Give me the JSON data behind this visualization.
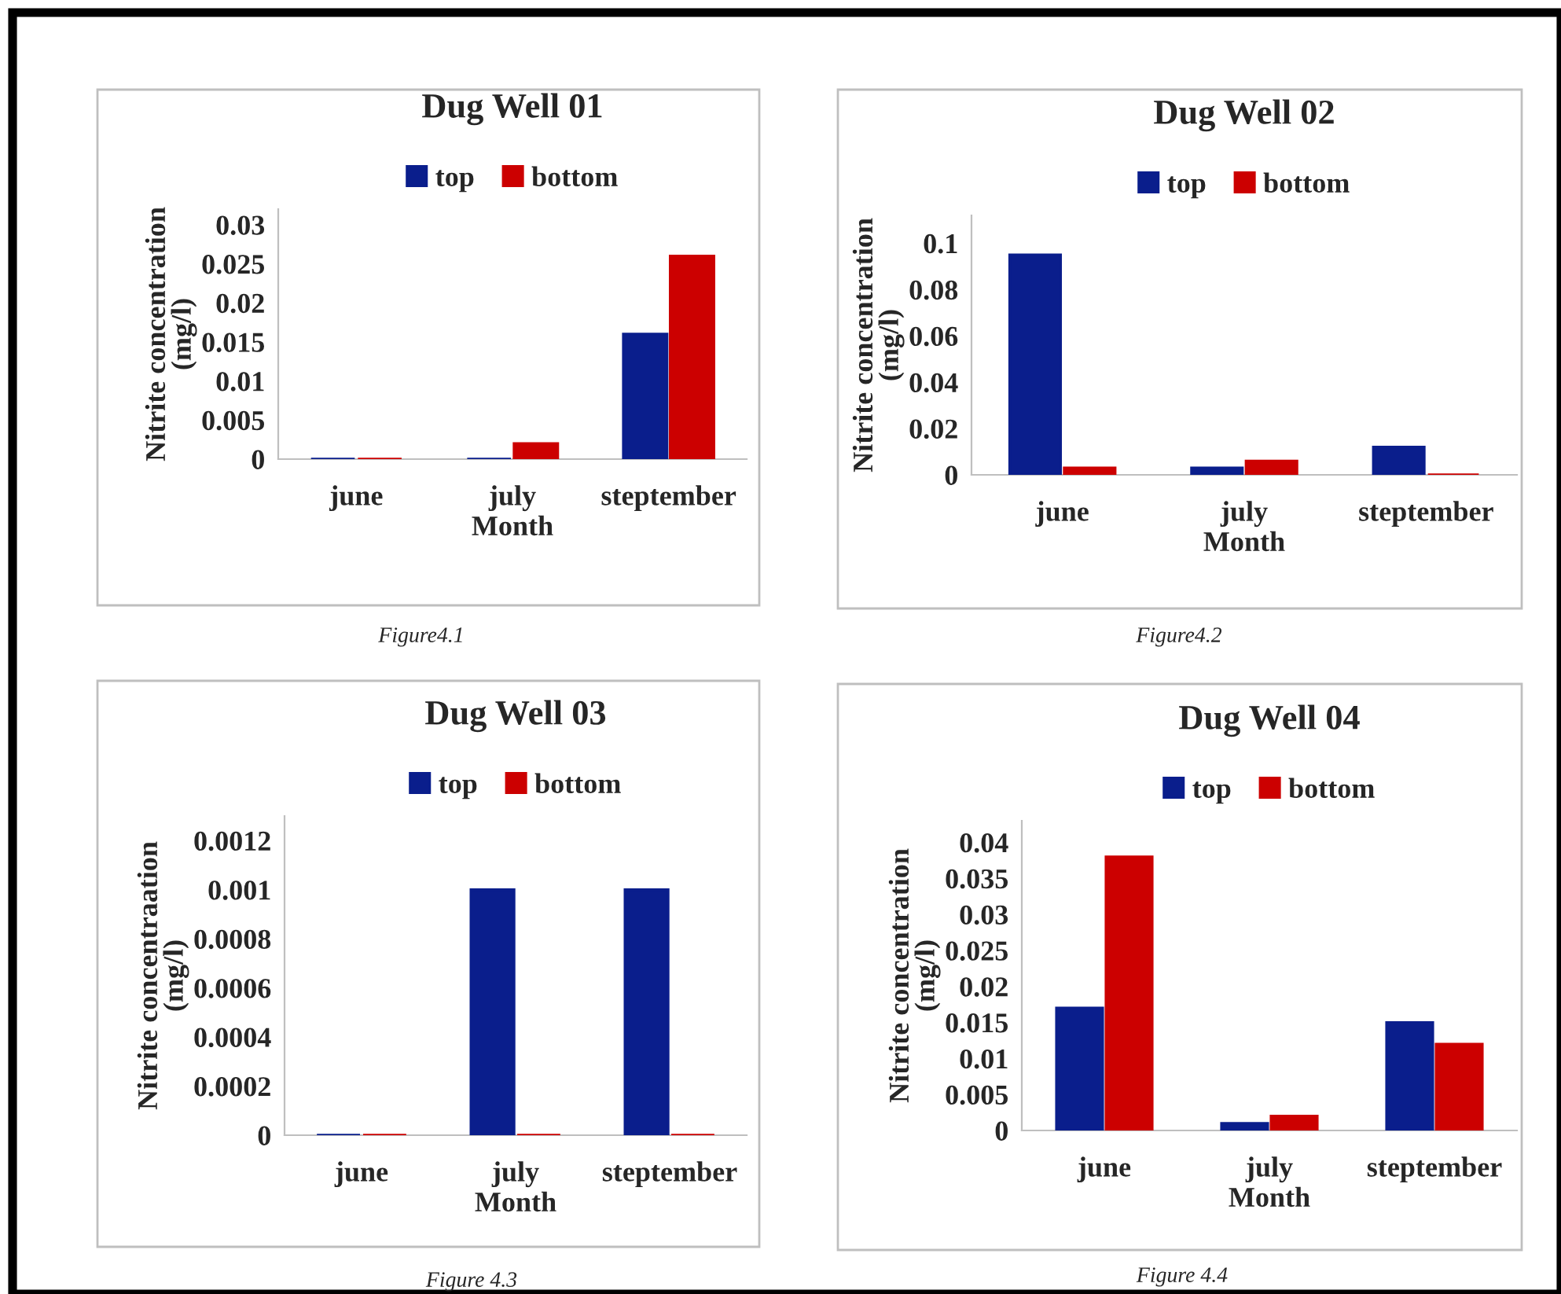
{
  "chart_data": [
    {
      "type": "bar",
      "title": "Dug Well 01",
      "xlabel": "Month",
      "ylabel": "Nitrite concentration\n(mg/l)",
      "categories": [
        "june",
        "july",
        "steptember"
      ],
      "series": [
        {
          "name": "top",
          "color": "#0a1e8c",
          "values": [
            0,
            0,
            0.016
          ]
        },
        {
          "name": "bottom",
          "color": "#cc0000",
          "values": [
            0,
            0.002,
            0.026
          ]
        }
      ],
      "ylim": [
        0,
        0.032
      ],
      "yticks": [
        0,
        0.005,
        0.01,
        0.015,
        0.02,
        0.025,
        0.03
      ],
      "grid": false,
      "legend": "top",
      "annotations": [
        "Figure4.1"
      ]
    },
    {
      "type": "bar",
      "title": "Dug Well 02",
      "xlabel": "Month",
      "ylabel": "Nitrite concentration\n(mg/l)",
      "categories": [
        "june",
        "july",
        "steptember"
      ],
      "series": [
        {
          "name": "top",
          "color": "#0a1e8c",
          "values": [
            0.095,
            0.003,
            0.012
          ]
        },
        {
          "name": "bottom",
          "color": "#cc0000",
          "values": [
            0.003,
            0.006,
            0
          ]
        }
      ],
      "ylim": [
        0,
        0.112
      ],
      "yticks": [
        0,
        0.02,
        0.04,
        0.06,
        0.08,
        0.1
      ],
      "grid": false,
      "legend": "top",
      "annotations": [
        "Figure4.2"
      ]
    },
    {
      "type": "bar",
      "title": "Dug Well 03",
      "xlabel": "Month",
      "ylabel": "Nitrite concentraation\n(mg/l)",
      "categories": [
        "june",
        "july",
        "steptember"
      ],
      "series": [
        {
          "name": "top",
          "color": "#0a1e8c",
          "values": [
            0,
            0.001,
            0.001
          ]
        },
        {
          "name": "bottom",
          "color": "#cc0000",
          "values": [
            0,
            0,
            0
          ]
        }
      ],
      "ylim": [
        0,
        0.0013
      ],
      "yticks": [
        0,
        0.0002,
        0.0004,
        0.0006,
        0.0008,
        0.001,
        0.0012
      ],
      "grid": false,
      "legend": "top",
      "annotations": [
        "Figure 4.3"
      ]
    },
    {
      "type": "bar",
      "title": "Dug Well 04",
      "xlabel": "Month",
      "ylabel": "Nitrite concentration\n(mg/l)",
      "categories": [
        "june",
        "july",
        "steptember"
      ],
      "series": [
        {
          "name": "top",
          "color": "#0a1e8c",
          "values": [
            0.017,
            0.001,
            0.015
          ]
        },
        {
          "name": "bottom",
          "color": "#cc0000",
          "values": [
            0.038,
            0.002,
            0.012
          ]
        }
      ],
      "ylim": [
        0,
        0.043
      ],
      "yticks": [
        0,
        0.005,
        0.01,
        0.015,
        0.02,
        0.025,
        0.03,
        0.035,
        0.04
      ],
      "grid": false,
      "legend": "top",
      "annotations": [
        "Figure 4.4"
      ]
    }
  ]
}
